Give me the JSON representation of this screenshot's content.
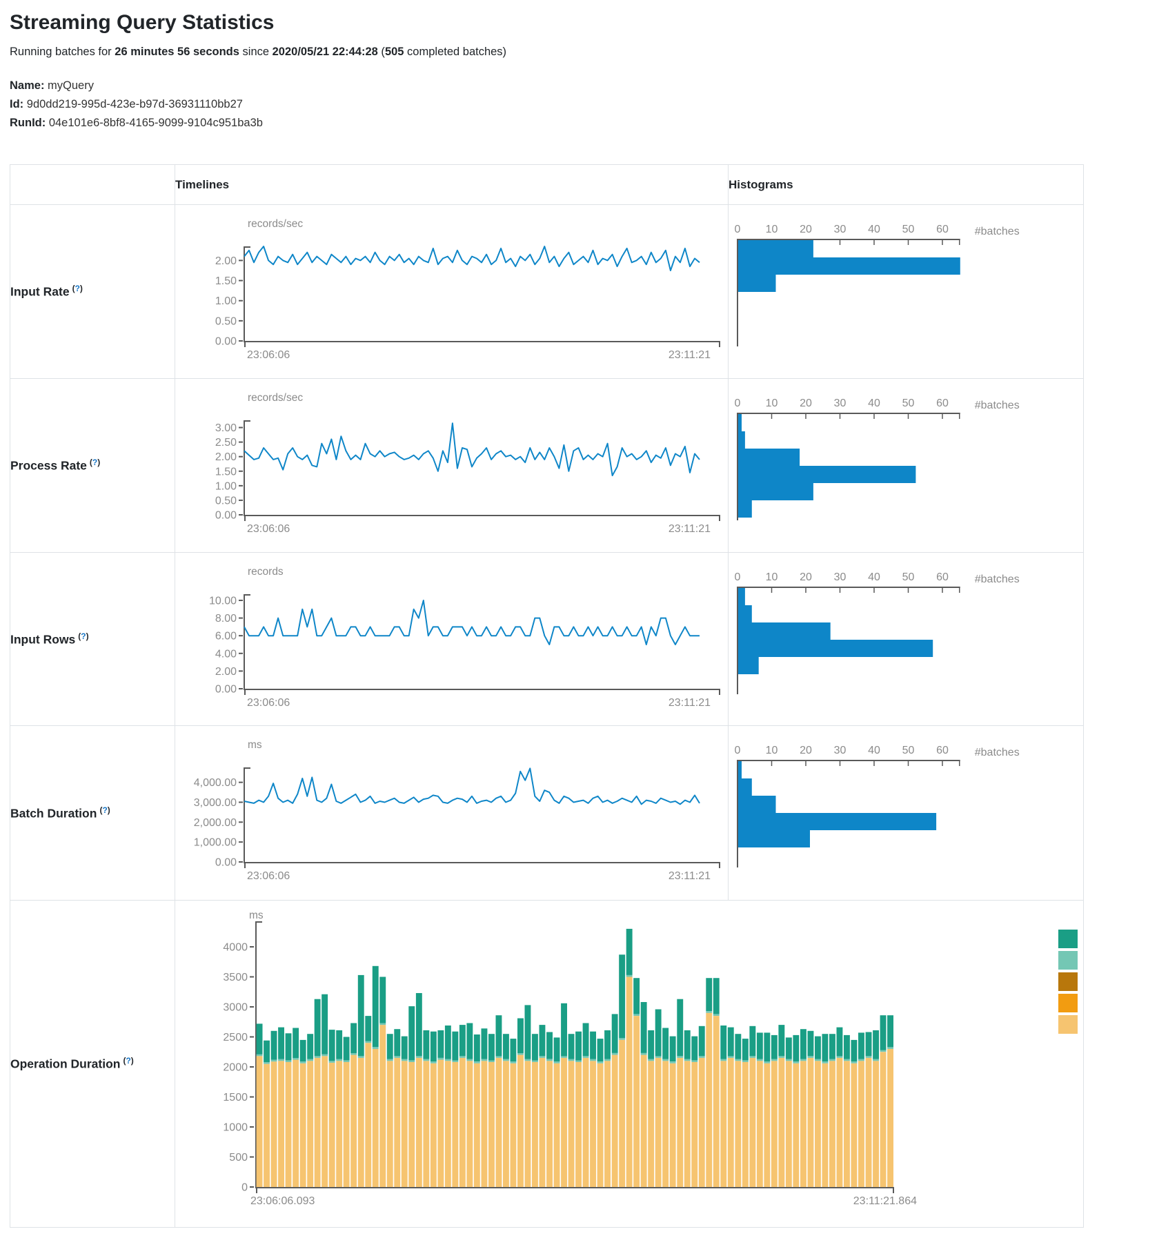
{
  "page": {
    "title": "Streaming Query Statistics",
    "subtitle": {
      "prefix": "Running batches for ",
      "duration": "26 minutes 56 seconds",
      "mid": " since ",
      "start_time": "2020/05/21 22:44:28",
      "open": " (",
      "batches": "505",
      "suffix": " completed batches)"
    },
    "meta": {
      "name": {
        "label": "Name:",
        "value": "myQuery"
      },
      "id": {
        "label": "Id:",
        "value": "9d0dd219-995d-423e-b97d-36931110bb27"
      },
      "runid": {
        "label": "RunId:",
        "value": "04e101e6-8bf8-4165-9099-9104c951ba3b"
      }
    }
  },
  "table": {
    "col_headers": {
      "timelines": "Timelines",
      "histograms": "Histograms"
    },
    "help": {
      "open": "(",
      "mark": "?",
      "close": ")"
    },
    "rows": [
      {
        "label": "Input Rate"
      },
      {
        "label": "Process Rate"
      },
      {
        "label": "Input Rows"
      },
      {
        "label": "Batch Duration"
      },
      {
        "label": "Operation Duration"
      }
    ]
  },
  "colors": {
    "accent_blue": "#0e86c8",
    "axis_line": "#595959",
    "tick_text": "#8b8b8b",
    "heading_text": "#212529",
    "border": "#dee2e6",
    "help_mark": "#1876c6",
    "stack_green": "#1a9e85",
    "stack_teal_light": "#74c7b4",
    "stack_gold": "#b8770c",
    "stack_orange": "#f29c11",
    "stack_tan": "#f6c470"
  },
  "chart_data": [
    {
      "id": "input_rate_timeline",
      "row": "Input Rate",
      "type": "line",
      "unit": "records/sec",
      "x_start": "23:06:06",
      "x_end": "23:11:21",
      "ylim": [
        0,
        2.35
      ],
      "yticks": [
        [
          0,
          "0.00"
        ],
        [
          0.5,
          "0.50"
        ],
        [
          1,
          "1.00"
        ],
        [
          1.5,
          "1.50"
        ],
        [
          2,
          "2.00"
        ]
      ],
      "values": [
        2.1,
        2.25,
        1.95,
        2.2,
        2.35,
        2.0,
        1.9,
        2.1,
        2.0,
        1.95,
        2.15,
        1.9,
        2.05,
        2.2,
        1.95,
        2.1,
        2.0,
        1.9,
        2.15,
        2.05,
        1.95,
        2.1,
        1.9,
        2.05,
        2.0,
        2.1,
        1.95,
        2.2,
        2.0,
        1.9,
        2.1,
        2.0,
        2.15,
        1.95,
        2.05,
        1.9,
        2.1,
        2.0,
        1.95,
        2.3,
        1.9,
        2.05,
        2.1,
        1.95,
        2.25,
        2.0,
        1.9,
        2.1,
        2.05,
        1.95,
        2.15,
        1.9,
        2.0,
        2.3,
        1.95,
        2.05,
        1.85,
        2.1,
        2.0,
        2.15,
        1.9,
        2.05,
        2.35,
        1.95,
        2.1,
        1.85,
        2.05,
        2.2,
        1.9,
        2.0,
        2.1,
        1.95,
        2.25,
        1.9,
        2.05,
        2.0,
        2.15,
        1.85,
        2.1,
        2.3,
        1.95,
        2.0,
        2.1,
        1.9,
        2.2,
        1.95,
        2.05,
        2.25,
        1.75,
        2.1,
        1.95,
        2.3,
        1.85,
        2.05,
        1.95
      ]
    },
    {
      "id": "input_rate_histogram",
      "row": "Input Rate",
      "type": "hbar",
      "xlabel": "#batches",
      "xlim": [
        0,
        65
      ],
      "xticks": [
        [
          0,
          "0"
        ],
        [
          10,
          "10"
        ],
        [
          20,
          "20"
        ],
        [
          30,
          "30"
        ],
        [
          40,
          "40"
        ],
        [
          50,
          "50"
        ],
        [
          60,
          "60"
        ]
      ],
      "values": [
        22,
        65,
        11
      ]
    },
    {
      "id": "process_rate_timeline",
      "row": "Process Rate",
      "type": "line",
      "unit": "records/sec",
      "x_start": "23:06:06",
      "x_end": "23:11:21",
      "ylim": [
        0,
        3.25
      ],
      "yticks": [
        [
          0,
          "0.00"
        ],
        [
          0.5,
          "0.50"
        ],
        [
          1,
          "1.00"
        ],
        [
          1.5,
          "1.50"
        ],
        [
          2,
          "2.00"
        ],
        [
          2.5,
          "2.50"
        ],
        [
          3,
          "3.00"
        ]
      ],
      "values": [
        2.2,
        2.05,
        1.9,
        1.95,
        2.3,
        2.1,
        1.9,
        1.95,
        1.55,
        2.1,
        2.3,
        2.0,
        1.9,
        2.05,
        1.7,
        1.65,
        2.45,
        2.1,
        2.6,
        1.9,
        2.7,
        2.2,
        1.9,
        2.05,
        1.9,
        2.45,
        2.1,
        2.0,
        2.2,
        2.0,
        2.1,
        2.15,
        2.0,
        1.9,
        1.95,
        2.05,
        1.9,
        2.1,
        2.2,
        1.95,
        1.5,
        2.2,
        1.8,
        3.15,
        1.6,
        2.3,
        2.25,
        1.65,
        1.95,
        2.1,
        2.3,
        1.9,
        2.1,
        2.2,
        2.0,
        2.05,
        1.9,
        2.0,
        1.8,
        2.3,
        1.9,
        2.15,
        1.9,
        2.3,
        2.0,
        1.6,
        2.4,
        1.5,
        2.2,
        2.3,
        1.9,
        2.05,
        1.9,
        2.1,
        2.0,
        2.45,
        1.35,
        1.65,
        2.3,
        2.0,
        2.1,
        1.9,
        2.0,
        2.2,
        1.8,
        2.05,
        1.95,
        2.3,
        1.7,
        2.1,
        2.0,
        2.35,
        1.45,
        2.1,
        1.9
      ]
    },
    {
      "id": "process_rate_histogram",
      "row": "Process Rate",
      "type": "hbar",
      "xlabel": "#batches",
      "xlim": [
        0,
        65
      ],
      "xticks": [
        [
          0,
          "0"
        ],
        [
          10,
          "10"
        ],
        [
          20,
          "20"
        ],
        [
          30,
          "30"
        ],
        [
          40,
          "40"
        ],
        [
          50,
          "50"
        ],
        [
          60,
          "60"
        ]
      ],
      "values": [
        1,
        2,
        18,
        52,
        22,
        4
      ]
    },
    {
      "id": "input_rows_timeline",
      "row": "Input Rows",
      "type": "line",
      "unit": "records",
      "x_start": "23:06:06",
      "x_end": "23:11:21",
      "ylim": [
        0,
        10.7
      ],
      "yticks": [
        [
          0,
          "0.00"
        ],
        [
          2,
          "2.00"
        ],
        [
          4,
          "4.00"
        ],
        [
          6,
          "6.00"
        ],
        [
          8,
          "8.00"
        ],
        [
          10,
          "10.00"
        ]
      ],
      "values": [
        7,
        6,
        6,
        6,
        7,
        6,
        6,
        8,
        6,
        6,
        6,
        6,
        9,
        7,
        9,
        6,
        6,
        7,
        8,
        6,
        6,
        6,
        7,
        7,
        6,
        6,
        7,
        6,
        6,
        6,
        6,
        7,
        7,
        6,
        6,
        9,
        8,
        10,
        6,
        7,
        7,
        6,
        6,
        7,
        7,
        7,
        6,
        7,
        6,
        6,
        7,
        6,
        6,
        7,
        6,
        6,
        7,
        7,
        6,
        6,
        8,
        8,
        6,
        5,
        7,
        7,
        6,
        6,
        7,
        6,
        6,
        7,
        6,
        7,
        6,
        6,
        7,
        6,
        6,
        7,
        6,
        6,
        7,
        5,
        7,
        6,
        8,
        8,
        6,
        5,
        6,
        7,
        6,
        6,
        6
      ]
    },
    {
      "id": "input_rows_histogram",
      "row": "Input Rows",
      "type": "hbar",
      "xlabel": "#batches",
      "xlim": [
        0,
        65
      ],
      "xticks": [
        [
          0,
          "0"
        ],
        [
          10,
          "10"
        ],
        [
          20,
          "20"
        ],
        [
          30,
          "30"
        ],
        [
          40,
          "40"
        ],
        [
          50,
          "50"
        ],
        [
          60,
          "60"
        ]
      ],
      "values": [
        2,
        4,
        27,
        57,
        6
      ]
    },
    {
      "id": "batch_duration_timeline",
      "row": "Batch Duration",
      "type": "line",
      "unit": "ms",
      "x_start": "23:06:06",
      "x_end": "23:11:21",
      "ylim": [
        0,
        4750
      ],
      "yticks": [
        [
          0,
          "0.00"
        ],
        [
          1000,
          "1,000.00"
        ],
        [
          2000,
          "2,000.00"
        ],
        [
          3000,
          "3,000.00"
        ],
        [
          4000,
          "4,000.00"
        ]
      ],
      "values": [
        3050,
        3000,
        2950,
        3100,
        3000,
        3300,
        3950,
        3200,
        3000,
        3100,
        2950,
        3400,
        4200,
        3300,
        4250,
        3100,
        3000,
        3200,
        3900,
        3050,
        2950,
        3100,
        3250,
        3400,
        3000,
        3100,
        3300,
        2950,
        3050,
        3000,
        3100,
        3200,
        3000,
        2950,
        3100,
        3250,
        3000,
        3150,
        3200,
        3350,
        3300,
        3000,
        2950,
        3100,
        3200,
        3150,
        3000,
        3300,
        2950,
        3050,
        3100,
        3000,
        3200,
        3300,
        3000,
        3100,
        3450,
        4550,
        4100,
        4700,
        3300,
        3050,
        3600,
        3500,
        3100,
        2950,
        3300,
        3200,
        3000,
        3050,
        3100,
        2950,
        3200,
        3300,
        3000,
        3100,
        2950,
        3050,
        3200,
        3100,
        3000,
        3300,
        2900,
        3100,
        3050,
        2950,
        3200,
        3100,
        3000,
        3050,
        2900,
        3100,
        3000,
        3350,
        2950
      ]
    },
    {
      "id": "batch_duration_histogram",
      "row": "Batch Duration",
      "type": "hbar",
      "xlabel": "#batches",
      "xlim": [
        0,
        65
      ],
      "xticks": [
        [
          0,
          "0"
        ],
        [
          10,
          "10"
        ],
        [
          20,
          "20"
        ],
        [
          30,
          "30"
        ],
        [
          40,
          "40"
        ],
        [
          50,
          "50"
        ],
        [
          60,
          "60"
        ]
      ],
      "values": [
        1,
        4,
        11,
        58,
        21
      ]
    },
    {
      "id": "operation_duration_stacked",
      "row": "Operation Duration",
      "type": "stacked_bar",
      "unit": "ms",
      "x_start": "23:06:06.093",
      "x_end": "23:11:21.864",
      "ylim": [
        0,
        4400
      ],
      "yticks": [
        [
          0,
          "0"
        ],
        [
          500,
          "500"
        ],
        [
          1000,
          "1000"
        ],
        [
          1500,
          "1500"
        ],
        [
          2000,
          "2000"
        ],
        [
          2500,
          "2500"
        ],
        [
          3000,
          "3000"
        ],
        [
          3500,
          "3500"
        ],
        [
          4000,
          "4000"
        ]
      ],
      "series": [
        {
          "name": "bottom-segment",
          "color_key": "stack_tan",
          "values": [
            2180,
            2050,
            2090,
            2100,
            2080,
            2120,
            2060,
            2100,
            2150,
            2180,
            2070,
            2100,
            2080,
            2200,
            2150,
            2400,
            2300,
            2700,
            2100,
            2150,
            2100,
            2080,
            2150,
            2100,
            2060,
            2120,
            2100,
            2080,
            2150,
            2100,
            2060,
            2100,
            2080,
            2150,
            2100,
            2060,
            2200,
            2100,
            2080,
            2150,
            2100,
            2060,
            2150,
            2100,
            2080,
            2150,
            2100,
            2060,
            2100,
            2200,
            2450,
            3500,
            2850,
            2200,
            2100,
            2150,
            2100,
            2060,
            2150,
            2100,
            2080,
            2150,
            2900,
            2850,
            2100,
            2150,
            2100,
            2080,
            2150,
            2100,
            2060,
            2100,
            2150,
            2100,
            2060,
            2100,
            2150,
            2100,
            2060,
            2100,
            2150,
            2100,
            2060,
            2100,
            2150,
            2100,
            2250,
            2300
          ]
        },
        {
          "name": "middle-segment",
          "color_key": "stack_teal_light",
          "constant": 30,
          "count": 88
        },
        {
          "name": "top-segment",
          "color_key": "stack_green",
          "values": [
            510,
            360,
            480,
            530,
            450,
            500,
            360,
            420,
            950,
            1000,
            520,
            480,
            390,
            500,
            1350,
            420,
            1350,
            770,
            420,
            450,
            380,
            900,
            1050,
            480,
            500,
            460,
            560,
            480,
            520,
            600,
            450,
            510,
            440,
            680,
            420,
            380,
            580,
            900,
            440,
            520,
            450,
            400,
            880,
            420,
            480,
            550,
            460,
            380,
            480,
            650,
            1390,
            770,
            600,
            850,
            480,
            780,
            520,
            420,
            950,
            480,
            400,
            500,
            550,
            600,
            560,
            480,
            420,
            360,
            500,
            440,
            480,
            400,
            520,
            360,
            440,
            500,
            420,
            380,
            460,
            420,
            480,
            400,
            360,
            440,
            400,
            480,
            580,
            530
          ]
        }
      ],
      "legend_colors": [
        "stack_green",
        "stack_teal_light",
        "stack_gold",
        "stack_orange",
        "stack_tan"
      ]
    }
  ]
}
